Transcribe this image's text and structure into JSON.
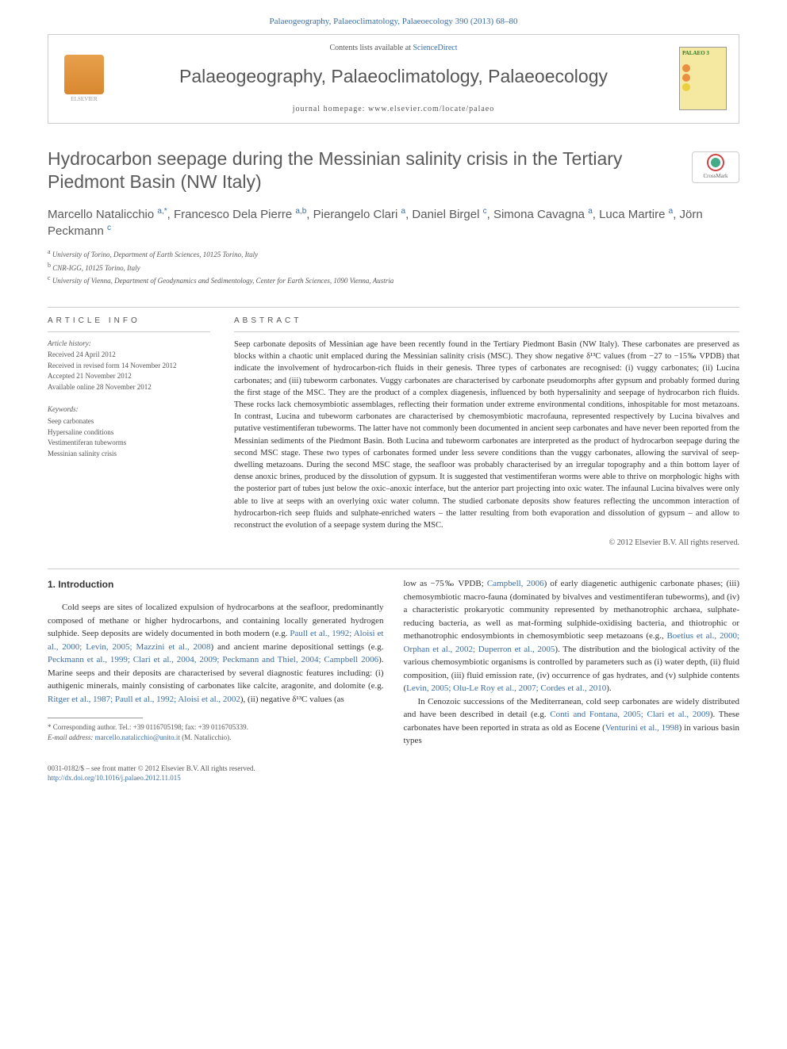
{
  "top_link": "Palaeogeography, Palaeoclimatology, Palaeoecology 390 (2013) 68–80",
  "header": {
    "contents_prefix": "Contents lists available at ",
    "sciencedirect": "ScienceDirect",
    "journal_title": "Palaeogeography, Palaeoclimatology, Palaeoecology",
    "homepage_prefix": "journal homepage: ",
    "homepage_url": "www.elsevier.com/locate/palaeo",
    "elsevier_label": "ELSEVIER",
    "cover_label": "PALAEO",
    "cover_issue": "3"
  },
  "article": {
    "title": "Hydrocarbon seepage during the Messinian salinity crisis in the Tertiary Piedmont Basin (NW Italy)",
    "crossmark_label": "CrossMark",
    "authors_html": "Marcello Natalicchio <sup class='author-sup'>a,*</sup>, Francesco Dela Pierre <sup class='author-sup'>a,b</sup>, Pierangelo Clari <sup class='author-sup'>a</sup>, Daniel Birgel <sup class='author-sup'>c</sup>, Simona Cavagna <sup class='author-sup'>a</sup>, Luca Martire <sup class='author-sup'>a</sup>, Jörn Peckmann <sup class='author-sup'>c</sup>",
    "affiliations": [
      {
        "sup": "a",
        "text": "University of Torino, Department of Earth Sciences, 10125 Torino, Italy"
      },
      {
        "sup": "b",
        "text": "CNR-IGG, 10125 Torino, Italy"
      },
      {
        "sup": "c",
        "text": "University of Vienna, Department of Geodynamics and Sedimentology, Center for Earth Sciences, 1090 Vienna, Austria"
      }
    ]
  },
  "info": {
    "section_label": "article info",
    "history_label": "Article history:",
    "history": [
      "Received 24 April 2012",
      "Received in revised form 14 November 2012",
      "Accepted 21 November 2012",
      "Available online 28 November 2012"
    ],
    "keywords_label": "Keywords:",
    "keywords": [
      "Seep carbonates",
      "Hypersaline conditions",
      "Vestimentiferan tubeworms",
      "Messinian salinity crisis"
    ]
  },
  "abstract": {
    "section_label": "abstract",
    "text": "Seep carbonate deposits of Messinian age have been recently found in the Tertiary Piedmont Basin (NW Italy). These carbonates are preserved as blocks within a chaotic unit emplaced during the Messinian salinity crisis (MSC). They show negative δ¹³C values (from −27 to −15‰ VPDB) that indicate the involvement of hydrocarbon-rich fluids in their genesis. Three types of carbonates are recognised: (i) vuggy carbonates; (ii) Lucina carbonates; and (iii) tubeworm carbonates. Vuggy carbonates are characterised by carbonate pseudomorphs after gypsum and probably formed during the first stage of the MSC. They are the product of a complex diagenesis, influenced by both hypersalinity and seepage of hydrocarbon rich fluids. These rocks lack chemosymbiotic assemblages, reflecting their formation under extreme environmental conditions, inhospitable for most metazoans. In contrast, Lucina and tubeworm carbonates are characterised by chemosymbiotic macrofauna, represented respectively by Lucina bivalves and putative vestimentiferan tubeworms. The latter have not commonly been documented in ancient seep carbonates and have never been reported from the Messinian sediments of the Piedmont Basin. Both Lucina and tubeworm carbonates are interpreted as the product of hydrocarbon seepage during the second MSC stage. These two types of carbonates formed under less severe conditions than the vuggy carbonates, allowing the survival of seep-dwelling metazoans. During the second MSC stage, the seafloor was probably characterised by an irregular topography and a thin bottom layer of dense anoxic brines, produced by the dissolution of gypsum. It is suggested that vestimentiferan worms were able to thrive on morphologic highs with the posterior part of tubes just below the oxic–anoxic interface, but the anterior part projecting into oxic water. The infaunal Lucina bivalves were only able to live at seeps with an overlying oxic water column. The studied carbonate deposits show features reflecting the uncommon interaction of hydrocarbon-rich seep fluids and sulphate-enriched waters – the latter resulting from both evaporation and dissolution of gypsum – and allow to reconstruct the evolution of a seepage system during the MSC.",
    "copyright": "© 2012 Elsevier B.V. All rights reserved."
  },
  "body": {
    "section_heading": "1. Introduction",
    "col1_html": "Cold seeps are sites of localized expulsion of hydrocarbons at the seafloor, predominantly composed of methane or higher hydrocarbons, and containing locally generated hydrogen sulphide. Seep deposits are widely documented in both modern (e.g. <span class='ref-link'>Paull et al., 1992; Aloisi et al., 2000; Levin, 2005; Mazzini et al., 2008</span>) and ancient marine depositional settings (e.g. <span class='ref-link'>Peckmann et al., 1999; Clari et al., 2004, 2009; Peckmann and Thiel, 2004; Campbell 2006</span>). Marine seeps and their deposits are characterised by several diagnostic features including: (i) authigenic minerals, mainly consisting of carbonates like calcite, aragonite, and dolomite (e.g. <span class='ref-link'>Ritger et al., 1987; Paull et al., 1992; Aloisi et al., 2002</span>), (ii) negative δ¹³C values (as",
    "col2_html1": "low as −75‰ VPDB; <span class='ref-link'>Campbell, 2006</span>) of early diagenetic authigenic carbonate phases; (iii) chemosymbiotic macro-fauna (dominated by bivalves and vestimentiferan tubeworms), and (iv) a characteristic prokaryotic community represented by methanotrophic archaea, sulphate-reducing bacteria, as well as mat-forming sulphide-oxidising bacteria, and thiotrophic or methanotrophic endosymbionts in chemosymbiotic seep metazoans (e.g., <span class='ref-link'>Boetius et al., 2000; Orphan et al., 2002; Duperron et al., 2005</span>). The distribution and the biological activity of the various chemosymbiotic organisms is controlled by parameters such as (i) water depth, (ii) fluid composition, (iii) fluid emission rate, (iv) occurrence of gas hydrates, and (v) sulphide contents (<span class='ref-link'>Levin, 2005; Olu-Le Roy et al., 2007; Cordes et al., 2010</span>).",
    "col2_html2": "In Cenozoic successions of the Mediterranean, cold seep carbonates are widely distributed and have been described in detail (e.g. <span class='ref-link'>Conti and Fontana, 2005; Clari et al., 2009</span>). These carbonates have been reported in strata as old as Eocene (<span class='ref-link'>Venturini et al., 1998</span>) in various basin types"
  },
  "footnote": {
    "corresponding": "* Corresponding author. Tel.: +39 0116705198; fax: +39 0116705339.",
    "email_label": "E-mail address: ",
    "email": "marcello.natalicchio@unito.it",
    "email_suffix": " (M. Natalicchio)."
  },
  "bottom": {
    "front_matter": "0031-0182/$ – see front matter © 2012 Elsevier B.V. All rights reserved.",
    "doi": "http://dx.doi.org/10.1016/j.palaeo.2012.11.015"
  },
  "colors": {
    "link": "#3a6ea5",
    "text_main": "#333333",
    "text_muted": "#555555",
    "border": "#cccccc"
  }
}
